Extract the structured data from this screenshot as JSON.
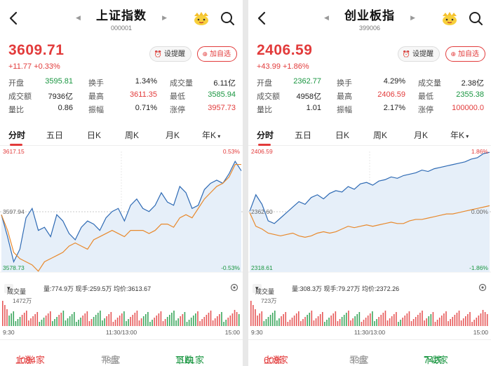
{
  "colors": {
    "up": "#e23b3b",
    "down": "#1a9641",
    "price_line": "#2e6ab4",
    "avg_line": "#e8892c",
    "area": "#e6eff9"
  },
  "icons": {
    "back": "chevron-left-icon",
    "crown": "crown-mascot-icon",
    "search": "search-icon",
    "remind": "bell-icon",
    "add": "plus-icon",
    "settings": "gear-icon"
  },
  "panels": [
    {
      "title": "上证指数",
      "code": "000001",
      "price": "3609.71",
      "change": "+11.77  +0.33%",
      "remind_label": "设提醒",
      "add_label": "加自选",
      "stats": [
        {
          "l1": "开盘",
          "v1": "3595.81",
          "l2": "换手",
          "v2": "1.34%",
          "l3": "成交量",
          "v3": "6.11亿"
        },
        {
          "l1": "成交额",
          "v1": "7936亿",
          "l2": "最高",
          "v2": "3611.35",
          "l3": "最低",
          "v3": "3585.94"
        },
        {
          "l1": "量比",
          "v1": "0.86",
          "l2": "振幅",
          "v2": "0.71%",
          "l3": "涨停",
          "v3": "3957.73"
        }
      ],
      "tabs": [
        "分时",
        "五日",
        "日K",
        "周K",
        "月K",
        "年K"
      ],
      "axis": {
        "high": "3617.15",
        "mid": "3597.94",
        "low": "3578.73",
        "pct_high": "0.53%",
        "pct_low": "-0.53%"
      },
      "vol_select": "成交量",
      "vol_info": "量:774.9万  现手:259.5万  均价:3613.67",
      "vol_max": "1472万",
      "time_labels": [
        "9:30",
        "11:30/13:00",
        "15:00"
      ],
      "breadth": {
        "up_label": "上涨",
        "up": "1084家",
        "flat_label": "平盘",
        "flat": "78家",
        "down_label": "下跌",
        "down": "1161家"
      }
    },
    {
      "title": "创业板指",
      "code": "399006",
      "price": "2406.59",
      "change": "+43.99  +1.86%",
      "remind_label": "设提醒",
      "add_label": "加自选",
      "stats": [
        {
          "l1": "开盘",
          "v1": "2362.77",
          "l2": "换手",
          "v2": "4.29%",
          "l3": "成交量",
          "v3": "2.38亿"
        },
        {
          "l1": "成交额",
          "v1": "4958亿",
          "l2": "最高",
          "v2": "2406.59",
          "l3": "最低",
          "v3": "2355.38"
        },
        {
          "l1": "量比",
          "v1": "1.01",
          "l2": "振幅",
          "v2": "2.17%",
          "l3": "涨停",
          "v3": "100000.0"
        }
      ],
      "tabs": [
        "分时",
        "五日",
        "日K",
        "周K",
        "月K",
        "年K"
      ],
      "axis": {
        "high": "2406.59",
        "mid": "2362.60",
        "low": "2318.61",
        "pct_high": "1.86%",
        "pct_mid": "0.00%",
        "pct_low": "-1.86%"
      },
      "vol_select": "成交量",
      "vol_info": "量:308.3万  现手:79.27万  均价:2372.26",
      "vol_max": "723万",
      "time_labels": [
        "9:30",
        "11:30/13:00",
        "15:00"
      ],
      "breadth": {
        "up_label": "上涨",
        "up": "608家",
        "flat_label": "平盘",
        "flat": "33家",
        "down_label": "下跌",
        "down": "742家"
      }
    }
  ],
  "chart_data": [
    {
      "type": "line",
      "title": "",
      "ylim": [
        3578.73,
        3617.15
      ],
      "prev_close": 3597.94,
      "series": [
        {
          "values": [
            3597,
            3590,
            3582,
            3586,
            3596,
            3599,
            3592,
            3593,
            3590,
            3597,
            3595,
            3591,
            3589,
            3593,
            3595,
            3594,
            3592,
            3596,
            3598,
            3599,
            3595,
            3600,
            3602,
            3599,
            3598,
            3600,
            3604,
            3601,
            3600,
            3606,
            3604,
            3599,
            3600,
            3605,
            3607,
            3608,
            3607,
            3610,
            3614,
            3611
          ]
        },
        {
          "values": [
            3597,
            3592,
            3585,
            3583,
            3582,
            3581,
            3579,
            3582,
            3583,
            3584,
            3585,
            3587,
            3588,
            3587,
            3586,
            3589,
            3590,
            3591,
            3592,
            3591,
            3590,
            3592,
            3592,
            3592,
            3591,
            3592,
            3594,
            3594,
            3593,
            3596,
            3597,
            3596,
            3599,
            3602,
            3604,
            3606,
            3607,
            3609,
            3613,
            3613
          ]
        }
      ]
    },
    {
      "type": "line",
      "title": "",
      "ylim": [
        2318.61,
        2406.59
      ],
      "prev_close": 2362.6,
      "series": [
        {
          "values": [
            2363,
            2375,
            2368,
            2356,
            2354,
            2358,
            2362,
            2366,
            2370,
            2368,
            2373,
            2375,
            2372,
            2376,
            2378,
            2377,
            2381,
            2379,
            2383,
            2384,
            2382,
            2385,
            2386,
            2388,
            2387,
            2389,
            2390,
            2391,
            2393,
            2392,
            2394,
            2395,
            2396,
            2397,
            2398,
            2399,
            2401,
            2402,
            2405,
            2406
          ]
        },
        {
          "values": [
            2362,
            2352,
            2350,
            2347,
            2346,
            2345,
            2346,
            2347,
            2345,
            2344,
            2345,
            2347,
            2348,
            2347,
            2348,
            2350,
            2352,
            2351,
            2352,
            2353,
            2352,
            2353,
            2354,
            2355,
            2354,
            2354,
            2356,
            2357,
            2357,
            2358,
            2359,
            2360,
            2361,
            2361,
            2362,
            2363,
            2364,
            2365,
            2366,
            2367
          ]
        }
      ]
    }
  ]
}
